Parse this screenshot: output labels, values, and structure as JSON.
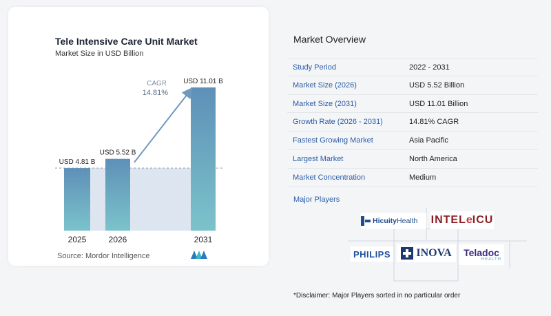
{
  "chart_card": {
    "title": "Tele Intensive Care Unit Market",
    "subtitle": "Market Size in USD Billion",
    "source": "Source:  Mordor Intelligence"
  },
  "chart_data": {
    "type": "bar",
    "title": "Tele Intensive Care Unit Market",
    "subtitle": "Market Size in USD Billion",
    "categories": [
      "2025",
      "2026",
      "2031"
    ],
    "values": [
      4.81,
      5.52,
      11.01
    ],
    "data_labels": [
      "USD 4.81 B",
      "USD 5.52 B",
      "USD 11.01 B"
    ],
    "annotation": {
      "label": "CAGR",
      "value": "14.81%"
    },
    "ylim": [
      0,
      11.5
    ],
    "grid": false,
    "colors": {
      "bar_top": "#5e90b8",
      "bar_bottom": "#7bc3cb",
      "arrow": "#6f99bd",
      "shade": "#dde6f0"
    }
  },
  "overview": {
    "title": "Market Overview",
    "rows": [
      {
        "label": "Study Period",
        "value": "2022 - 2031"
      },
      {
        "label": "Market Size (2026)",
        "value": "USD 5.52 Billion"
      },
      {
        "label": "Market Size (2031)",
        "value": "USD 11.01 Billion"
      },
      {
        "label": "Growth Rate (2026 - 2031)",
        "value": "14.81% CAGR"
      },
      {
        "label": "Fastest Growing Market",
        "value": "Asia Pacific"
      },
      {
        "label": "Largest Market",
        "value": "North America"
      },
      {
        "label": "Market Concentration",
        "value": "Medium"
      }
    ],
    "players_title": "Major Players"
  },
  "players": {
    "hicuity": {
      "part1": "Hicuity",
      "part2": "Health"
    },
    "intelelicu": {
      "part1": "INTEL",
      "part2": "e",
      "part3": "ICU"
    },
    "philips": "PHILIPS",
    "inova": "INOVA",
    "teladoc": {
      "main": "Teladoc",
      "sub": "HEALTH"
    }
  },
  "disclaimer": "*Disclaimer: Major Players sorted in no particular order"
}
